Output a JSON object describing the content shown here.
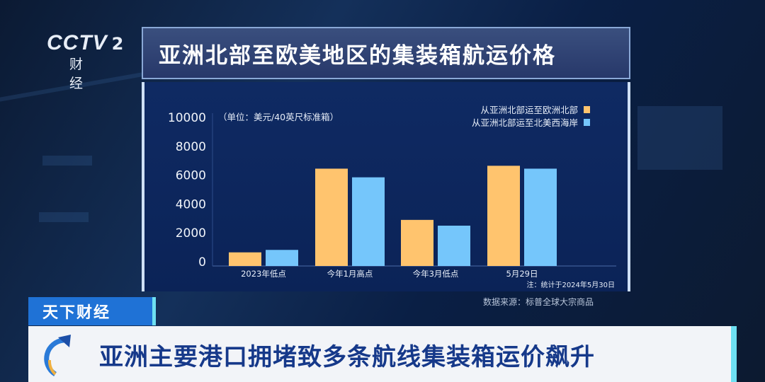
{
  "logo": {
    "brand": "CCTV",
    "channel": "2",
    "name": "财 经"
  },
  "title": "亚洲北部至欧美地区的集装箱航运价格",
  "chart_data": {
    "type": "bar",
    "title": "亚洲北部至欧美地区的集装箱航运价格",
    "unit_note": "（单位：美元/40英尺标准箱）",
    "categories": [
      "2023年低点",
      "今年1月高点",
      "今年3月低点",
      "5月29日"
    ],
    "series": [
      {
        "name": "从亚洲北部运至欧洲北部",
        "color": "#ffc46e",
        "values": [
          650,
          6450,
          2900,
          6650
        ]
      },
      {
        "name": "从亚洲北部运至北美西海岸",
        "color": "#75c6fb",
        "values": [
          820,
          5850,
          2500,
          6450
        ]
      }
    ],
    "yticks": [
      "0",
      "2000",
      "4000",
      "6000",
      "8000",
      "10000"
    ],
    "ylim": [
      0,
      10000
    ],
    "grid": false,
    "legend": "top-right",
    "footnote": "注：统计于2024年5月30日"
  },
  "source": "数据来源：标普全球大宗商品",
  "tag": "天下财经",
  "headline": "亚洲主要港口拥堵致多条航线集装箱运价飙升"
}
